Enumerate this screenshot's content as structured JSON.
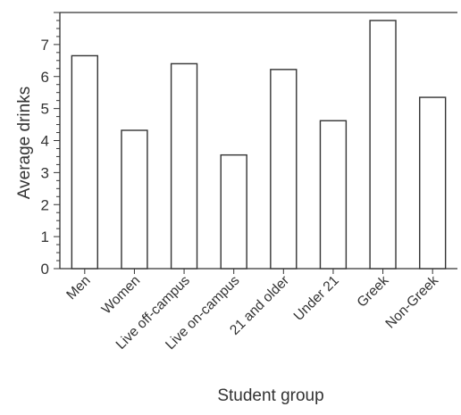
{
  "chart_data": {
    "type": "bar",
    "title": "",
    "xlabel": "Student group",
    "ylabel": "Average drinks",
    "categories": [
      "Men",
      "Women",
      "Live off-campus",
      "Live on-campus",
      "21 and older",
      "Under 21",
      "Greek",
      "Non-Greek"
    ],
    "values": [
      6.65,
      4.32,
      6.4,
      3.55,
      6.22,
      4.62,
      7.75,
      5.35
    ],
    "yticks": [
      0,
      1,
      2,
      3,
      4,
      5,
      6,
      7
    ],
    "ylim": [
      0,
      8
    ],
    "grid": false,
    "legend": "none",
    "bar_fill": "#ffffff",
    "bar_stroke": "#333333"
  }
}
